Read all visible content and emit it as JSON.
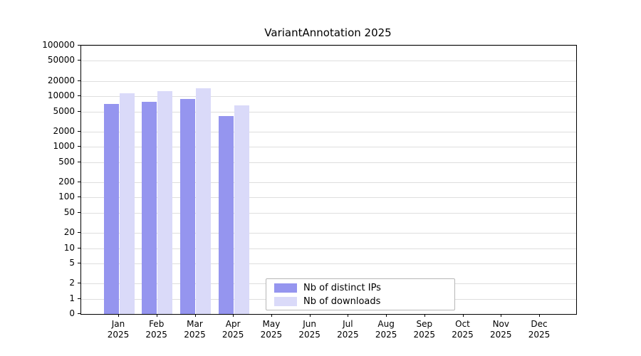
{
  "chart": {
    "title": "VariantAnnotation 2025",
    "colors": {
      "ips": "#9595ef",
      "downloads": "#dadaf9",
      "grid": "#dedede",
      "axis": "#000000",
      "background": "#ffffff",
      "legend_border": "#b7b7b7"
    },
    "legend": {
      "items": [
        {
          "series": "ips",
          "label": "Nb of distinct IPs"
        },
        {
          "series": "downloads",
          "label": "Nb of downloads"
        }
      ]
    }
  },
  "chart_data": {
    "type": "bar",
    "title": "VariantAnnotation 2025",
    "categories": [
      "Jan 2025",
      "Feb 2025",
      "Mar 2025",
      "Apr 2025",
      "May 2025",
      "Jun 2025",
      "Jul 2025",
      "Aug 2025",
      "Sep 2025",
      "Oct 2025",
      "Nov 2025",
      "Dec 2025"
    ],
    "series": [
      {
        "name": "Nb of distinct IPs",
        "color_key": "ips",
        "values": [
          7000,
          7800,
          8800,
          4000,
          null,
          null,
          null,
          null,
          null,
          null,
          null,
          null
        ]
      },
      {
        "name": "Nb of downloads",
        "color_key": "downloads",
        "values": [
          11500,
          12500,
          14500,
          6600,
          null,
          null,
          null,
          null,
          null,
          null,
          null,
          null
        ]
      }
    ],
    "yscale": "log",
    "yticks": [
      100000,
      50000,
      20000,
      10000,
      5000,
      2000,
      1000,
      500,
      200,
      100,
      50,
      20,
      10,
      5,
      2,
      1,
      0
    ],
    "ylim_top": 100000,
    "xlabel": "",
    "ylabel": "",
    "grid": true,
    "legend_position": "lower center"
  }
}
